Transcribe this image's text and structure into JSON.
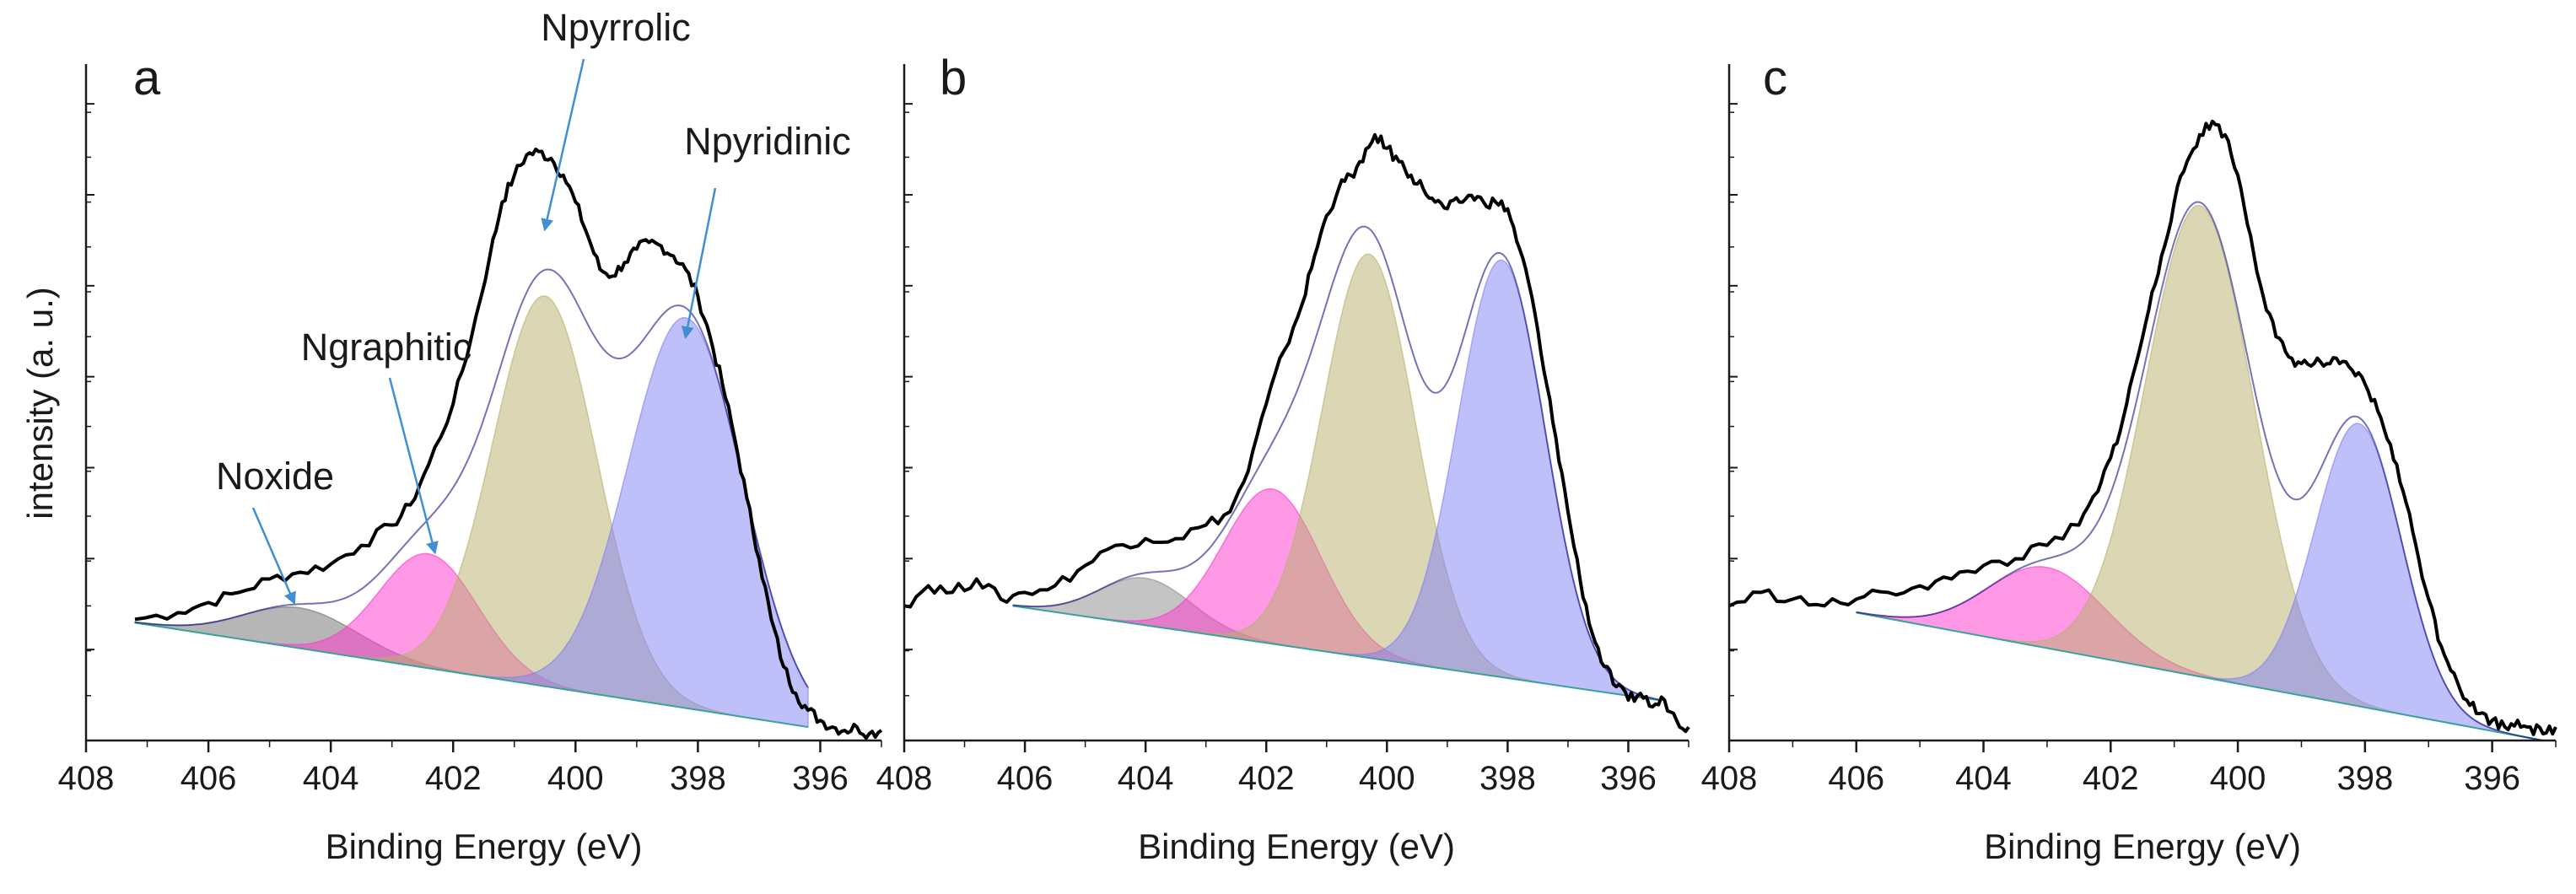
{
  "figure": {
    "ylabel": "intensity (a. u.)",
    "xlabel": "Binding Energy (eV)",
    "colors": {
      "axis": "#1a1a1a",
      "spectrum": "#000000",
      "envelope": "#00007a",
      "arrow": "#3f8fd2",
      "baseline": "#3aa39c"
    }
  },
  "chart_data": [
    {
      "type": "area",
      "panel": "a",
      "title": "",
      "xlabel": "Binding Energy (eV)",
      "ylabel": "intensity (a. u.)",
      "x_ticks": [
        408,
        406,
        404,
        402,
        400,
        398,
        396
      ],
      "xlim": [
        408,
        395
      ],
      "ylim": [
        0,
        1.0
      ],
      "grid": false,
      "baseline": [
        [
          407.2,
          0.175
        ],
        [
          396.2,
          0.02
        ]
      ],
      "components": [
        {
          "name": "Noxide",
          "center": 404.5,
          "fwhm": 2.2,
          "height": 0.06,
          "color": "#6e6e6e"
        },
        {
          "name": "Ngraphitic",
          "center": 402.4,
          "fwhm": 1.9,
          "height": 0.17,
          "color": "#ff33cc"
        },
        {
          "name": "Npyrrolic",
          "center": 400.5,
          "fwhm": 2.0,
          "height": 0.58,
          "color": "#b8b06a"
        },
        {
          "name": "Npyridinic",
          "center": 398.2,
          "fwhm": 2.2,
          "height": 0.58,
          "color": "#7f7ff5"
        }
      ],
      "spectrum": {
        "x": [
          407.2,
          406.5,
          406.0,
          405.5,
          405.0,
          404.5,
          404.0,
          403.5,
          403.0,
          402.7,
          402.4,
          402.0,
          401.7,
          401.4,
          401.2,
          401.0,
          400.8,
          400.6,
          400.4,
          400.2,
          400.0,
          399.8,
          399.6,
          399.4,
          399.2,
          399.0,
          398.8,
          398.6,
          398.4,
          398.2,
          398.0,
          397.8,
          397.6,
          397.4,
          397.2,
          397.0,
          396.8,
          396.6,
          396.4,
          396.2,
          396.0,
          395.8,
          395.6,
          395.4,
          395.2,
          395.0
        ],
        "y": [
          0.18,
          0.19,
          0.205,
          0.22,
          0.24,
          0.25,
          0.262,
          0.29,
          0.32,
          0.35,
          0.41,
          0.5,
          0.6,
          0.72,
          0.8,
          0.84,
          0.87,
          0.875,
          0.865,
          0.84,
          0.8,
          0.75,
          0.7,
          0.69,
          0.71,
          0.73,
          0.74,
          0.735,
          0.72,
          0.7,
          0.66,
          0.6,
          0.53,
          0.45,
          0.36,
          0.27,
          0.18,
          0.11,
          0.07,
          0.045,
          0.03,
          0.02,
          0.015,
          0.02,
          0.01,
          0.015
        ]
      },
      "annotations": [
        {
          "text": "Npyrrolic",
          "target_x": 400.5,
          "target_y": 0.76
        },
        {
          "text": "Npyridinic",
          "target_x": 398.2,
          "target_y": 0.6
        },
        {
          "text": "Ngraphitic",
          "target_x": 402.3,
          "target_y": 0.28
        },
        {
          "text": "Noxide",
          "target_x": 404.6,
          "target_y": 0.205
        }
      ]
    },
    {
      "type": "area",
      "panel": "b",
      "title": "",
      "xlabel": "Binding Energy (eV)",
      "ylabel": "",
      "x_ticks": [
        408,
        406,
        404,
        402,
        400,
        398,
        396
      ],
      "xlim": [
        408,
        395
      ],
      "ylim": [
        0,
        1.0
      ],
      "grid": false,
      "baseline": [
        [
          406.2,
          0.2
        ],
        [
          395.5,
          0.06
        ]
      ],
      "components": [
        {
          "name": "Noxide",
          "center": 404.0,
          "fwhm": 1.8,
          "height": 0.07,
          "color": "#8a8a8a"
        },
        {
          "name": "Ngraphitic",
          "center": 401.9,
          "fwhm": 1.9,
          "height": 0.23,
          "color": "#ff33cc"
        },
        {
          "name": "Npyrrolic",
          "center": 400.3,
          "fwhm": 1.8,
          "height": 0.6,
          "color": "#b8b06a"
        },
        {
          "name": "Npyridinic",
          "center": 398.1,
          "fwhm": 1.7,
          "height": 0.62,
          "color": "#7f7ff5"
        }
      ],
      "spectrum": {
        "x": [
          408.0,
          407.6,
          407.2,
          406.8,
          406.4,
          406.0,
          405.5,
          405.0,
          404.5,
          404.0,
          403.5,
          403.0,
          402.6,
          402.3,
          402.0,
          401.7,
          401.4,
          401.2,
          401.0,
          400.8,
          400.6,
          400.4,
          400.2,
          400.0,
          399.8,
          399.6,
          399.4,
          399.2,
          399.0,
          398.8,
          398.6,
          398.4,
          398.2,
          398.0,
          397.8,
          397.6,
          397.4,
          397.2,
          397.0,
          396.8,
          396.6,
          396.4,
          396.2,
          396.0,
          395.8,
          395.6,
          395.4,
          395.2,
          395.0
        ],
        "y": [
          0.2,
          0.23,
          0.22,
          0.24,
          0.21,
          0.22,
          0.23,
          0.26,
          0.29,
          0.3,
          0.3,
          0.32,
          0.34,
          0.4,
          0.5,
          0.58,
          0.65,
          0.72,
          0.78,
          0.82,
          0.84,
          0.86,
          0.9,
          0.88,
          0.86,
          0.84,
          0.82,
          0.8,
          0.79,
          0.8,
          0.81,
          0.8,
          0.8,
          0.79,
          0.73,
          0.66,
          0.55,
          0.45,
          0.34,
          0.24,
          0.16,
          0.11,
          0.08,
          0.06,
          0.07,
          0.05,
          0.06,
          0.03,
          0.02
        ]
      },
      "annotations": []
    },
    {
      "type": "area",
      "panel": "c",
      "title": "",
      "xlabel": "Binding Energy (eV)",
      "ylabel": "",
      "x_ticks": [
        408,
        406,
        404,
        402,
        400,
        398,
        396
      ],
      "xlim": [
        408,
        395
      ],
      "ylim": [
        0,
        1.0
      ],
      "grid": false,
      "baseline": [
        [
          406.0,
          0.19
        ],
        [
          395.2,
          0.0
        ]
      ],
      "components": [
        {
          "name": "Ngraphitic",
          "center": 403.0,
          "fwhm": 2.2,
          "height": 0.12,
          "color": "#ff33cc"
        },
        {
          "name": "Npyrrolic",
          "center": 400.6,
          "fwhm": 2.0,
          "height": 0.7,
          "color": "#b8b06a"
        },
        {
          "name": "Npyridinic",
          "center": 398.1,
          "fwhm": 1.6,
          "height": 0.42,
          "color": "#7f7ff5"
        }
      ],
      "spectrum": {
        "x": [
          408.0,
          407.5,
          407.0,
          406.5,
          406.0,
          405.5,
          405.0,
          404.5,
          404.0,
          403.5,
          403.0,
          402.5,
          402.2,
          402.0,
          401.8,
          401.6,
          401.4,
          401.2,
          401.0,
          400.8,
          400.6,
          400.4,
          400.2,
          400.0,
          399.8,
          399.6,
          399.4,
          399.2,
          399.0,
          398.8,
          398.6,
          398.4,
          398.2,
          398.0,
          397.8,
          397.6,
          397.4,
          397.2,
          397.0,
          396.8,
          396.6,
          396.4,
          396.2,
          396.0,
          395.8,
          395.6,
          395.4,
          395.2,
          395.0
        ],
        "y": [
          0.2,
          0.22,
          0.21,
          0.2,
          0.21,
          0.22,
          0.23,
          0.24,
          0.26,
          0.27,
          0.29,
          0.32,
          0.37,
          0.42,
          0.48,
          0.56,
          0.64,
          0.72,
          0.8,
          0.86,
          0.9,
          0.92,
          0.9,
          0.84,
          0.75,
          0.66,
          0.6,
          0.57,
          0.56,
          0.56,
          0.56,
          0.56,
          0.55,
          0.53,
          0.49,
          0.44,
          0.37,
          0.29,
          0.21,
          0.14,
          0.1,
          0.06,
          0.04,
          0.03,
          0.02,
          0.03,
          0.02,
          0.01,
          0.02
        ]
      },
      "annotations": []
    }
  ]
}
